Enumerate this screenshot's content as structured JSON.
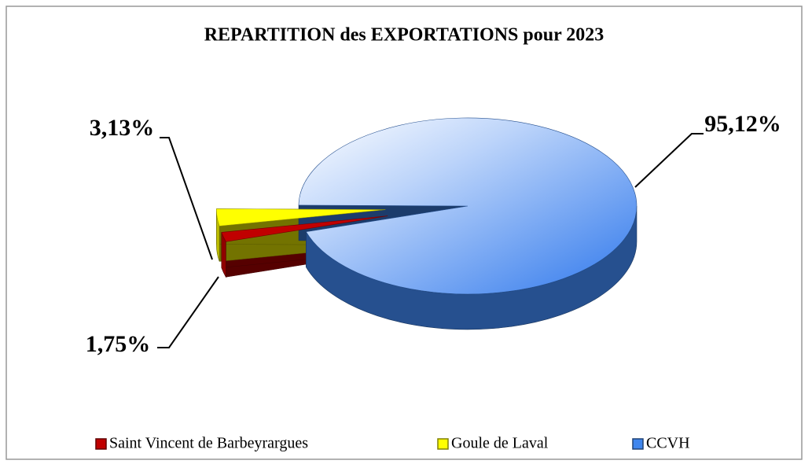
{
  "chart_data": {
    "type": "pie",
    "title": "REPARTITION des EXPORTATIONS pour 2023",
    "categories": [
      "Saint Vincent de Barbeyrargues",
      "Goule de Laval",
      "CCVH"
    ],
    "values": [
      1.75,
      3.13,
      95.12
    ],
    "value_labels": [
      "1,75%",
      "3,13%",
      "95,12%"
    ],
    "colors": [
      "#c00000",
      "#ffff00",
      "#3f86ee"
    ],
    "legend": "bottom"
  }
}
